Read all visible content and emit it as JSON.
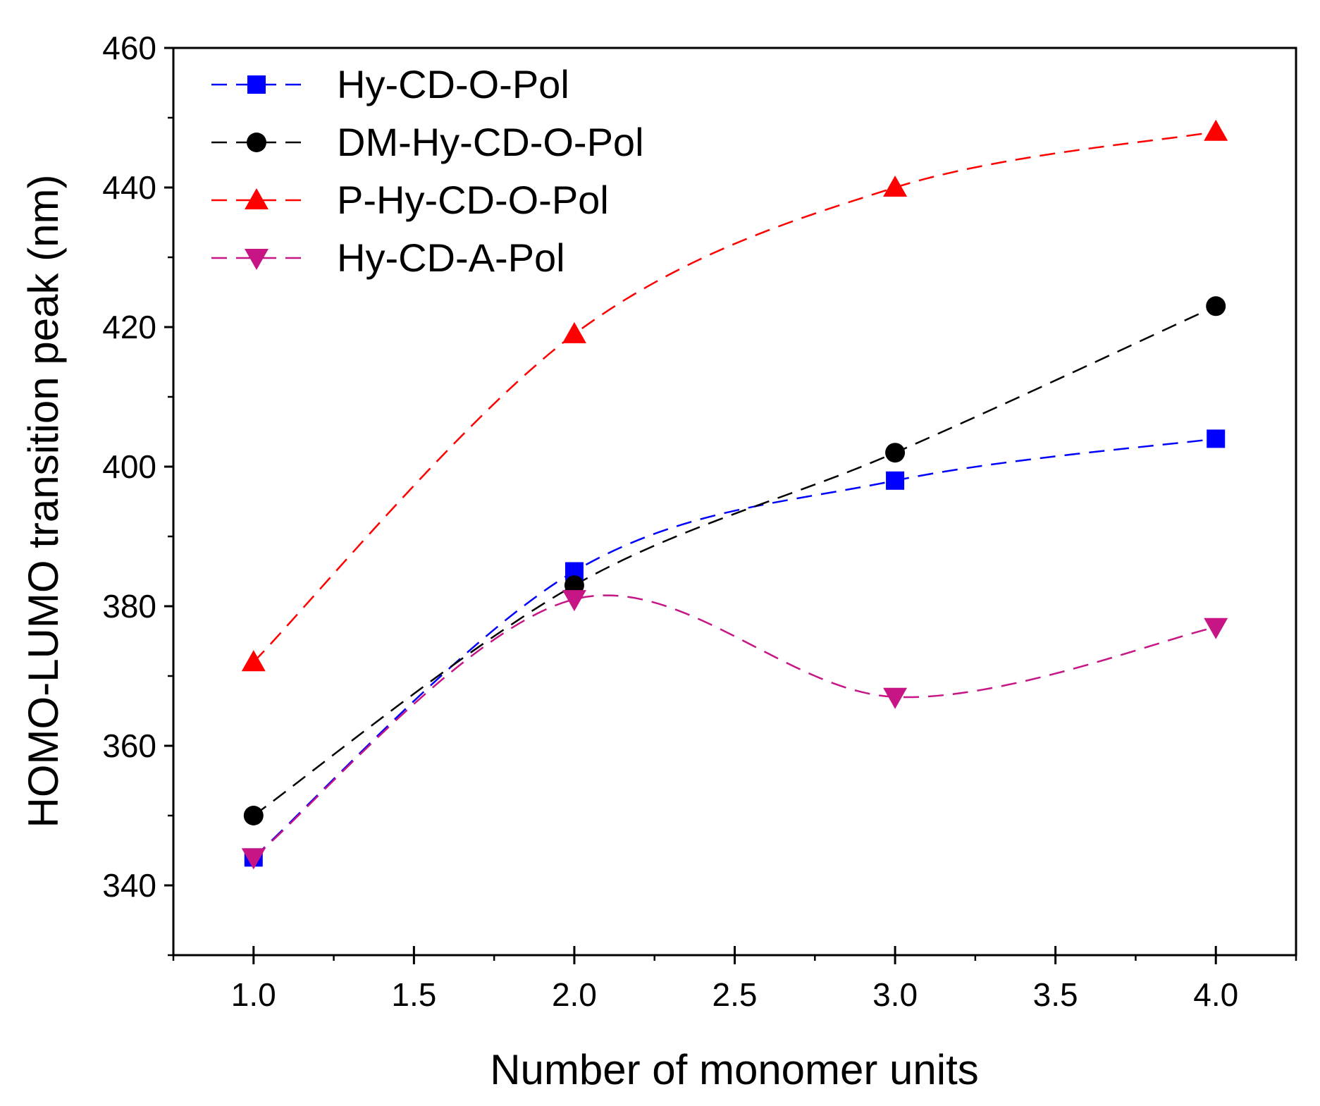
{
  "chart_data": {
    "type": "line",
    "title": "",
    "xlabel": "Number of monomer units",
    "ylabel": "HOMO-LUMO transition peak (nm)",
    "xlim": [
      0.75,
      4.25
    ],
    "ylim": [
      330,
      460
    ],
    "x_ticks": [
      1.0,
      1.5,
      2.0,
      2.5,
      3.0,
      3.5,
      4.0
    ],
    "x_tick_labels": [
      "1.0",
      "1.5",
      "2.0",
      "2.5",
      "3.0",
      "3.5",
      "4.0"
    ],
    "y_ticks": [
      340,
      360,
      380,
      400,
      420,
      440,
      460
    ],
    "y_tick_labels": [
      "340",
      "360",
      "380",
      "400",
      "420",
      "440",
      "460"
    ],
    "grid": false,
    "legend_position": "top-left",
    "x": [
      1.0,
      2.0,
      3.0,
      4.0
    ],
    "series": [
      {
        "name": "Hy-CD-O-Pol",
        "color": "#0000FF",
        "marker": "square",
        "values": [
          344,
          385,
          398,
          404
        ]
      },
      {
        "name": "DM-Hy-CD-O-Pol",
        "color": "#000000",
        "marker": "circle",
        "values": [
          350,
          383,
          402,
          423
        ]
      },
      {
        "name": "P-Hy-CD-O-Pol",
        "color": "#FF0000",
        "marker": "triangle-up",
        "values": [
          372,
          419,
          440,
          448
        ]
      },
      {
        "name": "Hy-CD-A-Pol",
        "color": "#C71585",
        "marker": "triangle-down",
        "values": [
          344,
          381,
          367,
          377
        ]
      }
    ]
  }
}
